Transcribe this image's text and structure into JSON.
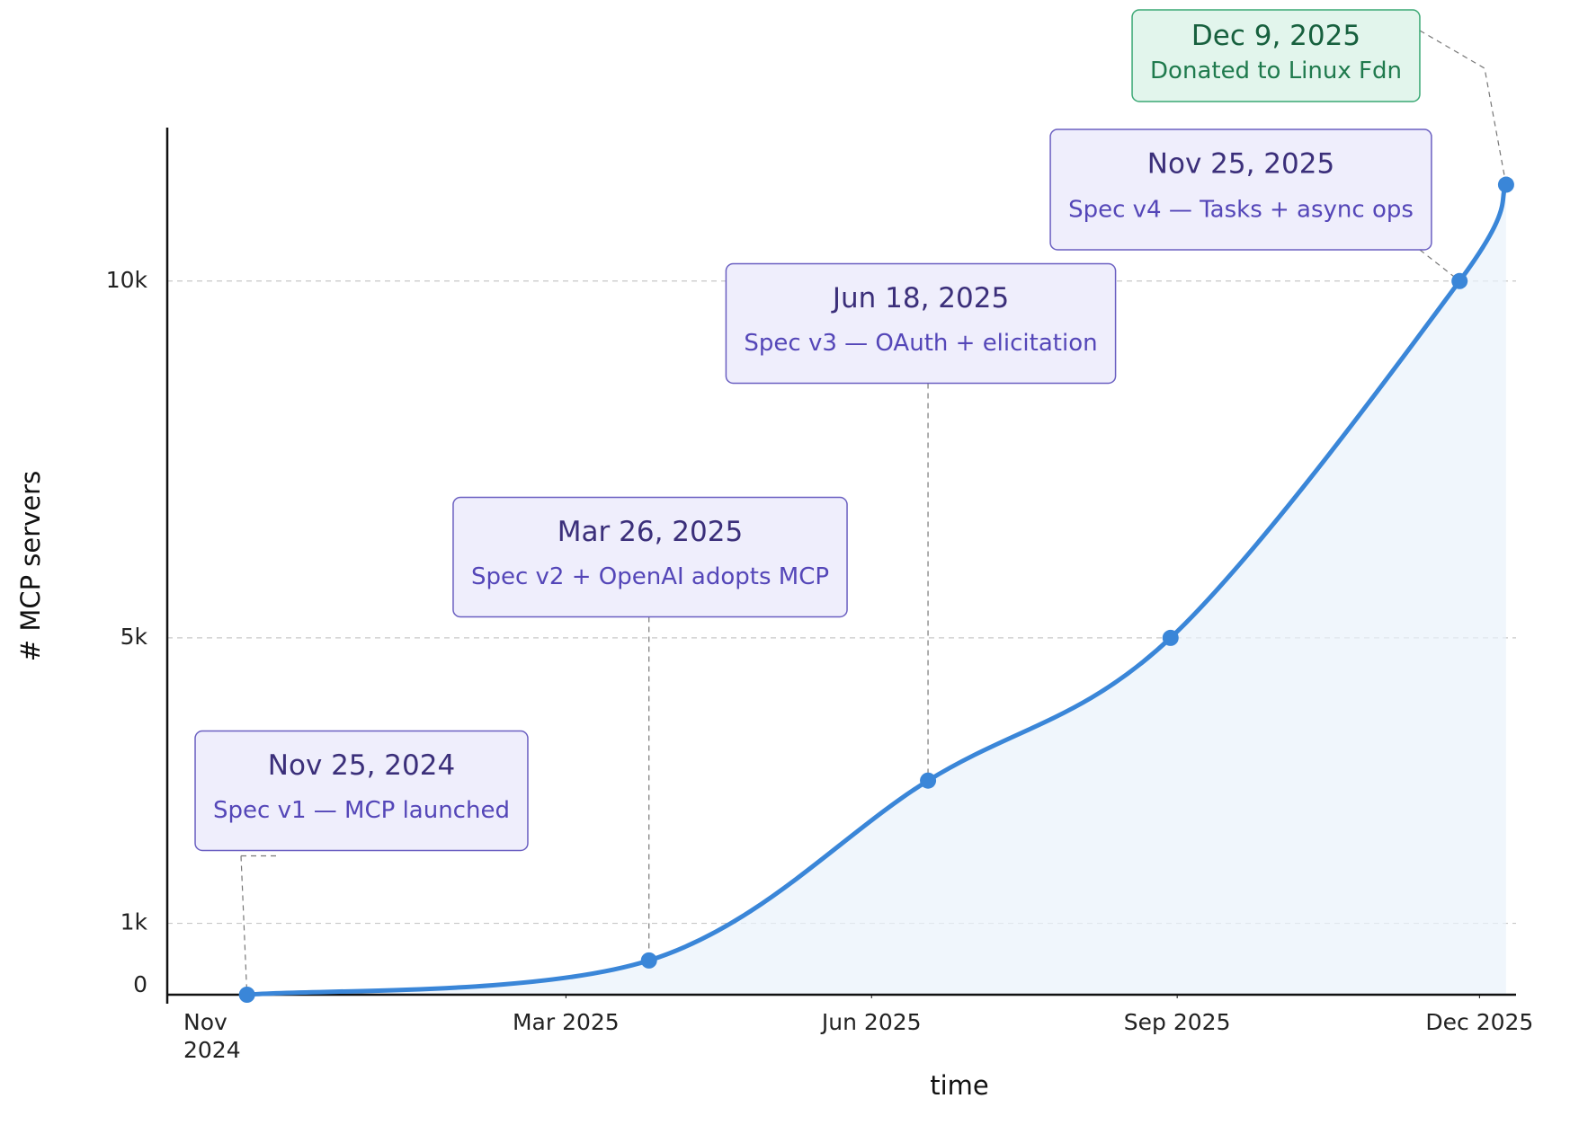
{
  "chart_data": {
    "type": "line",
    "x_label": "time",
    "y_label": "# MCP servers",
    "x": [
      "2024-11-25",
      "2025-03-26",
      "2025-06-18",
      "2025-08-30",
      "2025-11-25",
      "2025-12-09"
    ],
    "series": [
      {
        "name": "MCP servers",
        "color": "#3a86d8",
        "values": [
          0,
          480,
          3000,
          5000,
          10000,
          11350
        ]
      }
    ],
    "xlim": [
      "2024-11-01",
      "2025-12-12"
    ],
    "xticks": [
      {
        "value": "2024-11-01",
        "label": "Nov 2024"
      },
      {
        "value": "2025-03-01",
        "label": "Mar 2025"
      },
      {
        "value": "2025-06-01",
        "label": "Jun 2025"
      },
      {
        "value": "2025-09-01",
        "label": "Sep 2025"
      },
      {
        "value": "2025-12-01",
        "label": "Dec 2025"
      }
    ],
    "ylim": [
      0,
      12150
    ],
    "yticks": [
      0,
      {
        "value": 1000,
        "label": "1k"
      },
      {
        "value": 5000,
        "label": "5k"
      },
      {
        "value": 10000,
        "label": "10k"
      }
    ],
    "grid": true,
    "annotations": [
      {
        "date": "Nov 25, 2024",
        "text": "Spec v1 — MCP launched",
        "color": "purple"
      },
      {
        "date": "Mar 26, 2025",
        "text": "Spec v2 + OpenAI adopts MCP",
        "color": "purple"
      },
      {
        "date": "Jun 18, 2025",
        "text": "Spec v3 — OAuth + elicitation",
        "color": "purple"
      },
      {
        "date": "Nov 25, 2025",
        "text": "Spec v4 — Tasks + async ops",
        "color": "purple"
      },
      {
        "date": "Dec 9, 2025",
        "text": "Donated to Linux Fdn",
        "color": "green"
      }
    ]
  }
}
